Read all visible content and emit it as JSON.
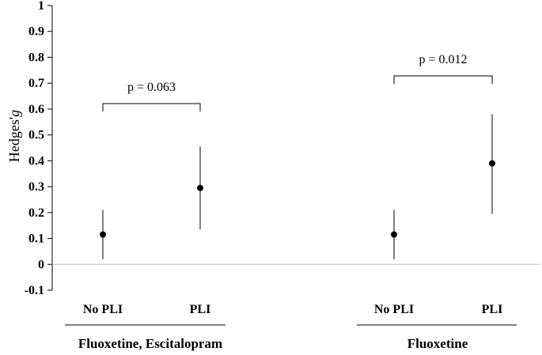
{
  "chart_data": {
    "type": "scatter",
    "title": "",
    "ylabel": {
      "main": "Hedges'",
      "italic": "g"
    },
    "xlabel": "",
    "ylim": [
      -0.1,
      1
    ],
    "yticks": [
      1,
      0.9,
      0.8,
      0.7,
      0.6,
      0.5,
      0.4,
      0.3,
      0.2,
      0.1,
      0,
      -0.1
    ],
    "ytick_labels": [
      "1",
      "0.9",
      "0.8",
      "0.7",
      "0.6",
      "0.5",
      "0.4",
      "0.3",
      "0.2",
      "0.1",
      "0",
      "-0.1"
    ],
    "grid": false,
    "zero_line": true,
    "groups": [
      {
        "label": "Fluoxetine, Escitalopram",
        "categories": [
          "No PLI",
          "PLI"
        ],
        "points": [
          {
            "category": "No PLI",
            "value": 0.115,
            "lower": 0.02,
            "upper": 0.21
          },
          {
            "category": "PLI",
            "value": 0.295,
            "lower": 0.135,
            "upper": 0.455
          }
        ],
        "annotation": "p = 0.063"
      },
      {
        "label": "Fluoxetine",
        "categories": [
          "No PLI",
          "PLI"
        ],
        "points": [
          {
            "category": "No PLI",
            "value": 0.115,
            "lower": 0.02,
            "upper": 0.21
          },
          {
            "category": "PLI",
            "value": 0.39,
            "lower": 0.195,
            "upper": 0.58
          }
        ],
        "annotation": "p = 0.012"
      }
    ]
  }
}
